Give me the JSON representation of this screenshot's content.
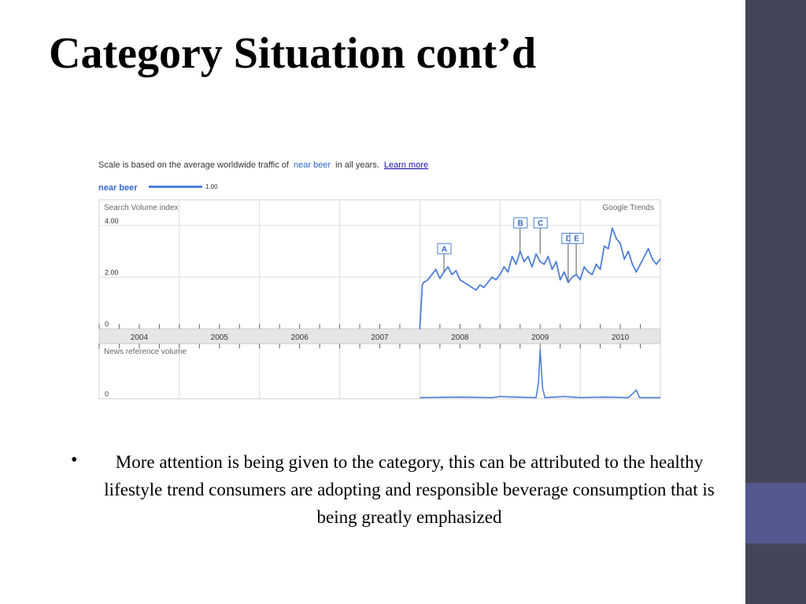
{
  "slide": {
    "title": "Category Situation cont’d",
    "bullet": "More attention is being given to the category, this can be  attributed to the healthy lifestyle trend consumers are adopting and responsible beverage consumption that is being greatly emphasized",
    "colors": {
      "sidebar": "#454559",
      "sidebar_accent": "#54588e",
      "text": "#000000"
    }
  },
  "trends": {
    "scale_prefix": "Scale is based on the average worldwide traffic of",
    "term": "near beer",
    "scale_suffix": "in all years.",
    "learn_more": "Learn more",
    "legend_term": "near beer",
    "legend_value": "1.00",
    "brand": "Google Trends",
    "news_label": "News reference volume",
    "colors": {
      "line": "#4d7fd9",
      "link": "#3366cc",
      "grid": "#dddddd",
      "band": "#e6e6e6"
    }
  },
  "chart_data": [
    {
      "type": "line",
      "title": "Search Volume index",
      "xlabel": "",
      "ylabel": "",
      "x_ticks": [
        "2004",
        "2005",
        "2006",
        "2007",
        "2008",
        "2009",
        "2010"
      ],
      "xlim": [
        2004.0,
        2011.0
      ],
      "ylim": [
        0,
        5
      ],
      "y_ticks": [
        {
          "value": 0,
          "label": "0"
        },
        {
          "value": 2,
          "label": "2.00"
        },
        {
          "value": 4,
          "label": "4.00"
        }
      ],
      "grid": true,
      "series": [
        {
          "name": "near beer",
          "color": "#4d7fd9",
          "x": [
            2008.0,
            2008.03,
            2008.05,
            2008.1,
            2008.15,
            2008.2,
            2008.25,
            2008.3,
            2008.35,
            2008.4,
            2008.45,
            2008.5,
            2008.55,
            2008.6,
            2008.65,
            2008.7,
            2008.75,
            2008.8,
            2008.85,
            2008.9,
            2008.95,
            2009.0,
            2009.05,
            2009.1,
            2009.15,
            2009.2,
            2009.25,
            2009.3,
            2009.35,
            2009.4,
            2009.45,
            2009.5,
            2009.55,
            2009.6,
            2009.65,
            2009.7,
            2009.75,
            2009.8,
            2009.85,
            2009.9,
            2009.95,
            2010.0,
            2010.05,
            2010.1,
            2010.15,
            2010.2,
            2010.25,
            2010.3,
            2010.35,
            2010.4,
            2010.45,
            2010.5,
            2010.55,
            2010.6,
            2010.65,
            2010.7,
            2010.75,
            2010.8,
            2010.85,
            2010.9,
            2010.95,
            2011.0
          ],
          "y": [
            0.0,
            1.7,
            1.8,
            1.9,
            2.1,
            2.3,
            1.95,
            2.2,
            2.4,
            2.1,
            2.25,
            1.9,
            1.8,
            1.7,
            1.6,
            1.5,
            1.7,
            1.6,
            1.8,
            2.0,
            1.9,
            2.1,
            2.4,
            2.2,
            2.8,
            2.5,
            3.0,
            2.6,
            2.8,
            2.4,
            2.9,
            2.6,
            2.5,
            2.8,
            2.3,
            2.6,
            1.9,
            2.2,
            1.8,
            2.0,
            2.1,
            1.9,
            2.4,
            2.2,
            2.1,
            2.5,
            2.3,
            3.2,
            3.1,
            3.9,
            3.5,
            3.3,
            2.7,
            3.0,
            2.5,
            2.2,
            2.5,
            2.8,
            3.1,
            2.7,
            2.5,
            2.7
          ]
        }
      ],
      "annotations": [
        {
          "label": "A",
          "x": 2008.3,
          "y": 2.2
        },
        {
          "label": "B",
          "x": 2009.25,
          "y": 3.0
        },
        {
          "label": "C",
          "x": 2009.5,
          "y": 2.9
        },
        {
          "label": "D",
          "x": 2009.85,
          "y": 1.8
        },
        {
          "label": "E",
          "x": 2009.95,
          "y": 2.1
        }
      ]
    },
    {
      "type": "line",
      "title": "News reference volume",
      "xlabel": "",
      "ylabel": "",
      "xlim": [
        2004.0,
        2011.0
      ],
      "ylim": [
        0,
        5
      ],
      "y_ticks": [
        {
          "value": 0,
          "label": "0"
        }
      ],
      "grid": true,
      "series": [
        {
          "name": "near beer",
          "color": "#4d7fd9",
          "x": [
            2008.0,
            2008.5,
            2008.9,
            2009.0,
            2009.2,
            2009.45,
            2009.48,
            2009.5,
            2009.53,
            2009.56,
            2009.8,
            2010.0,
            2010.3,
            2010.6,
            2010.66,
            2010.7,
            2010.74,
            2011.0
          ],
          "y": [
            0.1,
            0.15,
            0.1,
            0.2,
            0.15,
            0.1,
            1.5,
            4.5,
            1.0,
            0.1,
            0.2,
            0.1,
            0.15,
            0.1,
            0.5,
            0.8,
            0.1,
            0.1
          ]
        }
      ]
    }
  ]
}
